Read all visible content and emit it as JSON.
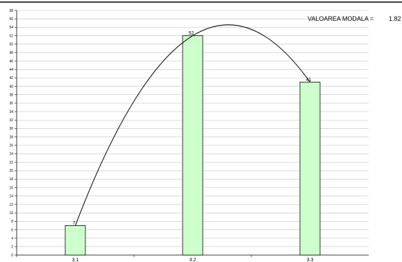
{
  "chart_data": {
    "type": "bar",
    "categories": [
      "3.1",
      "3.2",
      "3.3"
    ],
    "values": [
      7,
      52,
      41
    ],
    "ylim": [
      0,
      58
    ],
    "ytick_step": 2,
    "grid": true,
    "bar_color": "#ccffcc",
    "bar_edge_color": "#000000",
    "grid_color": "#c0c0c0",
    "trend_curve": "smooth curve through bar tops",
    "annotation": {
      "label": "VALOAREA MODALA =",
      "value": "1.82"
    }
  }
}
